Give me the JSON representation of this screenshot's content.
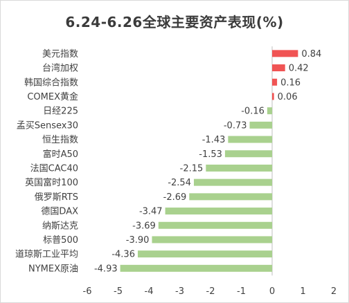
{
  "chart_data": {
    "type": "bar",
    "orientation": "horizontal",
    "title": "6.24-6.26全球主要资产表现(%)",
    "categories": [
      "美元指数",
      "台湾加权",
      "韩国综合指数",
      "COMEX黄金",
      "日经225",
      "孟买Sensex30",
      "恒生指数",
      "富时A50",
      "法国CAC40",
      "英国富时100",
      "俄罗斯RTS",
      "德国DAX",
      "纳斯达克",
      "标普500",
      "道琼斯工业平均",
      "NYMEX原油"
    ],
    "values": [
      0.84,
      0.42,
      0.16,
      0.06,
      -0.16,
      -0.73,
      -1.43,
      -1.53,
      -2.15,
      -2.54,
      -2.69,
      -3.47,
      -3.69,
      -3.9,
      -4.36,
      -4.93
    ],
    "value_labels": [
      "0.84",
      "0.42",
      "0.16",
      "0.06",
      "-0.16",
      "-0.73",
      "-1.43",
      "-1.53",
      "-2.15",
      "-2.54",
      "-2.69",
      "-3.47",
      "-3.69",
      "-3.90",
      "-4.36",
      "-4.93"
    ],
    "xlim": [
      -6,
      2
    ],
    "xticks": [
      -6,
      -5,
      -4,
      -3,
      -2,
      -1,
      0,
      1,
      2
    ],
    "tick_labels": [
      "-6",
      "-5",
      "-4",
      "-3",
      "-2",
      "-1",
      "0",
      "1",
      "2"
    ],
    "grid": false,
    "legend": "none",
    "colors": {
      "positive": "#f05454",
      "negative": "#a9d18e",
      "axis": "#bfbfbf"
    }
  }
}
